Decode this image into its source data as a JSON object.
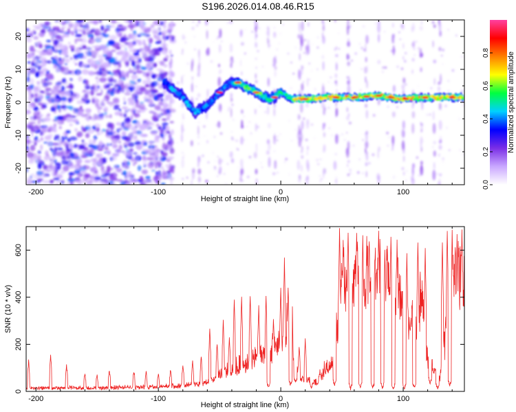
{
  "title": "S196.2026.014.08.46.R15",
  "chart_data": [
    {
      "type": "heatmap",
      "xlabel": "Height of straight line (km)",
      "ylabel": "Frequency (Hz)",
      "xlim": [
        -208,
        150
      ],
      "ylim": [
        -25,
        25
      ],
      "xticks": [
        -200,
        -100,
        0,
        100
      ],
      "yticks": [
        -20,
        -10,
        0,
        10,
        20
      ],
      "colorbar": {
        "label": "Normalized spectral amplitude",
        "range": [
          0.0,
          1.0
        ],
        "ticks": [
          0.0,
          0.2,
          0.4,
          0.6,
          0.8
        ],
        "tick_labels": [
          "0.0",
          "0.2",
          "0.4",
          "0.6",
          "0.8"
        ],
        "colormap": [
          "#ffffff",
          "#c9a7ff",
          "#7a2ee6",
          "#0000ff",
          "#00d0ff",
          "#00ff40",
          "#ffff00",
          "#ff8000",
          "#ff0000",
          "#ff40a0"
        ]
      },
      "ridge_frequency_hz": {
        "x": [
          -95,
          -88,
          -80,
          -75,
          -70,
          -65,
          -60,
          -55,
          -50,
          -45,
          -40,
          -35,
          -30,
          -25,
          -20,
          -15,
          -10,
          -5,
          0,
          5,
          10,
          20,
          40,
          60,
          80,
          100,
          120,
          150
        ],
        "y": [
          6,
          4,
          2,
          -1,
          -3,
          -2,
          -1,
          1,
          3,
          5,
          6,
          6,
          5,
          4,
          3,
          2,
          1,
          1.5,
          3,
          2,
          1,
          1,
          1.5,
          1.5,
          2,
          1,
          1.5,
          1.5
        ]
      }
    },
    {
      "type": "line",
      "xlabel": "Height of straight line (km)",
      "ylabel": "SNR (10 * v/v)",
      "xlim": [
        -208,
        150
      ],
      "ylim": [
        0,
        700
      ],
      "xticks": [
        -200,
        -100,
        0,
        100
      ],
      "yticks": [
        0,
        200,
        400,
        600
      ],
      "line_color": "#ee2222",
      "envelope_baseline": {
        "x": [
          -208,
          -190,
          -150,
          -120,
          -100,
          -80,
          -70,
          -60,
          -50,
          -40,
          -30,
          -20,
          -10,
          0,
          5,
          10,
          15,
          30,
          45,
          50,
          60,
          70,
          80,
          90,
          100,
          105,
          110,
          115,
          120,
          130,
          140,
          150
        ],
        "y": [
          15,
          15,
          15,
          18,
          20,
          25,
          30,
          40,
          70,
          90,
          110,
          140,
          180,
          200,
          300,
          200,
          60,
          40,
          150,
          500,
          490,
          510,
          500,
          480,
          430,
          300,
          260,
          420,
          130,
          60,
          470,
          510
        ]
      },
      "peaks": {
        "x": [
          -206,
          -188,
          -175,
          -160,
          -150,
          -140,
          -120,
          -110,
          -100,
          -90,
          -80,
          -72,
          -65,
          -58,
          -52,
          -47,
          -42,
          -38,
          -32,
          -25,
          -18,
          -12,
          -6,
          0,
          3,
          6,
          9,
          15,
          20,
          32,
          38,
          45,
          48,
          51,
          55,
          58,
          62,
          67,
          72,
          76,
          80,
          85,
          90,
          95,
          100,
          103,
          108,
          112,
          118,
          122,
          128,
          132,
          136,
          140,
          144,
          148
        ],
        "y": [
          130,
          160,
          110,
          80,
          70,
          85,
          90,
          80,
          75,
          90,
          110,
          130,
          150,
          260,
          200,
          300,
          230,
          380,
          400,
          410,
          360,
          410,
          300,
          440,
          560,
          450,
          470,
          190,
          220,
          90,
          80,
          440,
          690,
          650,
          680,
          620,
          680,
          660,
          600,
          640,
          680,
          600,
          660,
          640,
          560,
          580,
          520,
          640,
          600,
          690,
          660,
          640,
          690,
          680,
          660,
          690
        ]
      },
      "dips": {
        "x": [
          -10,
          8,
          12,
          25,
          44,
          57,
          65,
          75,
          83,
          92,
          101,
          109,
          122,
          128,
          138
        ],
        "y": [
          10,
          20,
          30,
          10,
          20,
          5,
          10,
          5,
          10,
          5,
          5,
          10,
          30,
          5,
          20
        ]
      }
    }
  ]
}
